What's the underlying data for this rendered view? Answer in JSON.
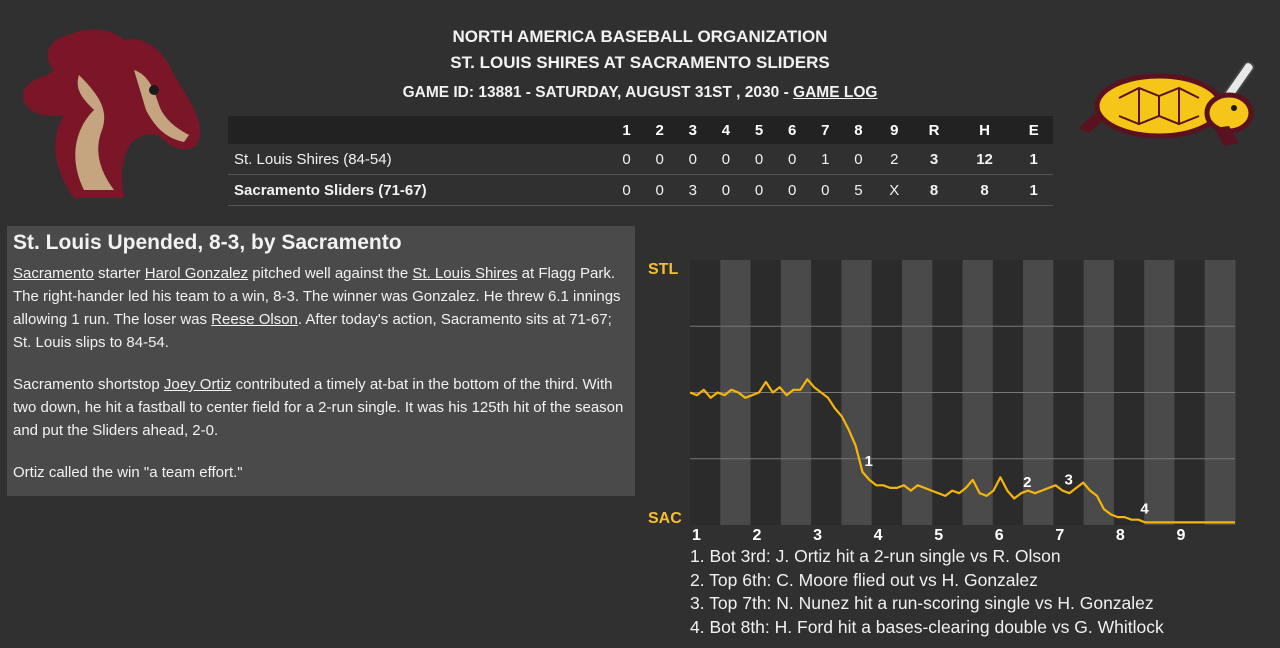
{
  "header": {
    "org": "NORTH AMERICA BASEBALL ORGANIZATION",
    "matchup": "ST. LOUIS SHIRES AT SACRAMENTO SLIDERS",
    "game_line_prefix": "GAME ID: 13881 - SATURDAY, AUGUST 31ST , 2030 - ",
    "game_log_link": "GAME LOG"
  },
  "logos": {
    "away": "horse-head-logo",
    "home": "turtle-bat-logo"
  },
  "linescore": {
    "columns": [
      "1",
      "2",
      "3",
      "4",
      "5",
      "6",
      "7",
      "8",
      "9",
      "R",
      "H",
      "E"
    ],
    "away": {
      "team": "St. Louis Shires (84-54)",
      "innings": [
        "0",
        "0",
        "0",
        "0",
        "0",
        "0",
        "1",
        "0",
        "2"
      ],
      "R": "3",
      "H": "12",
      "E": "1"
    },
    "home": {
      "team": "Sacramento Sliders (71-67)",
      "innings": [
        "0",
        "0",
        "3",
        "0",
        "0",
        "0",
        "0",
        "5",
        "X"
      ],
      "R": "8",
      "H": "8",
      "E": "1"
    }
  },
  "recap": {
    "headline": "St. Louis Upended, 8-3, by Sacramento",
    "p1": [
      {
        "t": "Sacramento",
        "link": true
      },
      {
        "t": " starter "
      },
      {
        "t": "Harol Gonzalez",
        "link": true
      },
      {
        "t": " pitched well against the "
      },
      {
        "t": "St. Louis Shires",
        "link": true
      },
      {
        "t": " at Flagg Park. The right-hander led his team to a win, 8-3. The winner was Gonzalez. He threw 6.1 innings allowing 1 run. The loser was "
      },
      {
        "t": "Reese Olson",
        "link": true
      },
      {
        "t": ". After today's action, Sacramento sits at 71-67; St. Louis slips to 84-54."
      }
    ],
    "p2": [
      {
        "t": "Sacramento shortstop "
      },
      {
        "t": "Joey Ortiz",
        "link": true
      },
      {
        "t": " contributed a timely at-bat in the bottom of the third. With two down, he hit a fastball to center field for a 2-run single. It was his 125th hit of the season and put the Sliders ahead, 2-0."
      }
    ],
    "p3": [
      {
        "t": "Ortiz called the win \"a team effort.\""
      }
    ]
  },
  "chart_data": {
    "type": "line",
    "top_label": "STL",
    "bottom_label": "SAC",
    "innings": [
      "1",
      "2",
      "3",
      "4",
      "5",
      "6",
      "7",
      "8",
      "9"
    ],
    "y_range": [
      0,
      100
    ],
    "series": [
      {
        "color": "#f5b50a",
        "values": [
          50,
          49,
          51,
          48,
          50,
          49,
          51,
          50,
          48,
          49,
          50,
          54,
          50,
          52,
          49,
          51,
          51,
          55,
          52,
          50,
          48,
          44,
          41,
          36,
          30,
          20,
          17,
          15,
          15,
          14,
          14,
          15,
          13,
          15,
          14,
          13,
          12,
          11,
          13,
          12,
          14,
          17,
          12,
          11,
          13,
          18,
          13,
          10,
          12,
          13,
          12,
          13,
          14,
          15,
          13,
          12,
          14,
          16,
          13,
          11,
          6,
          4,
          3,
          3,
          2,
          2,
          1,
          1,
          1,
          1,
          1,
          1,
          1,
          1,
          1,
          1,
          1,
          1,
          1,
          1
        ]
      }
    ],
    "markers": [
      {
        "label": "1",
        "index": 25
      },
      {
        "label": "2",
        "index": 48
      },
      {
        "label": "3",
        "index": 54
      },
      {
        "label": "4",
        "index": 65
      }
    ],
    "colors": {
      "band_dark": "#2b2b2b",
      "band_light": "#4a4a4a",
      "axis_label": "#f5c030"
    }
  },
  "notes": [
    "1. Bot 3rd: J. Ortiz hit a 2-run single vs R. Olson",
    "2. Top 6th: C. Moore flied out vs H. Gonzalez",
    "3. Top 7th: N. Nunez hit a run-scoring single vs H. Gonzalez",
    "4. Bot 8th: H. Ford hit a bases-clearing double vs G. Whitlock"
  ]
}
